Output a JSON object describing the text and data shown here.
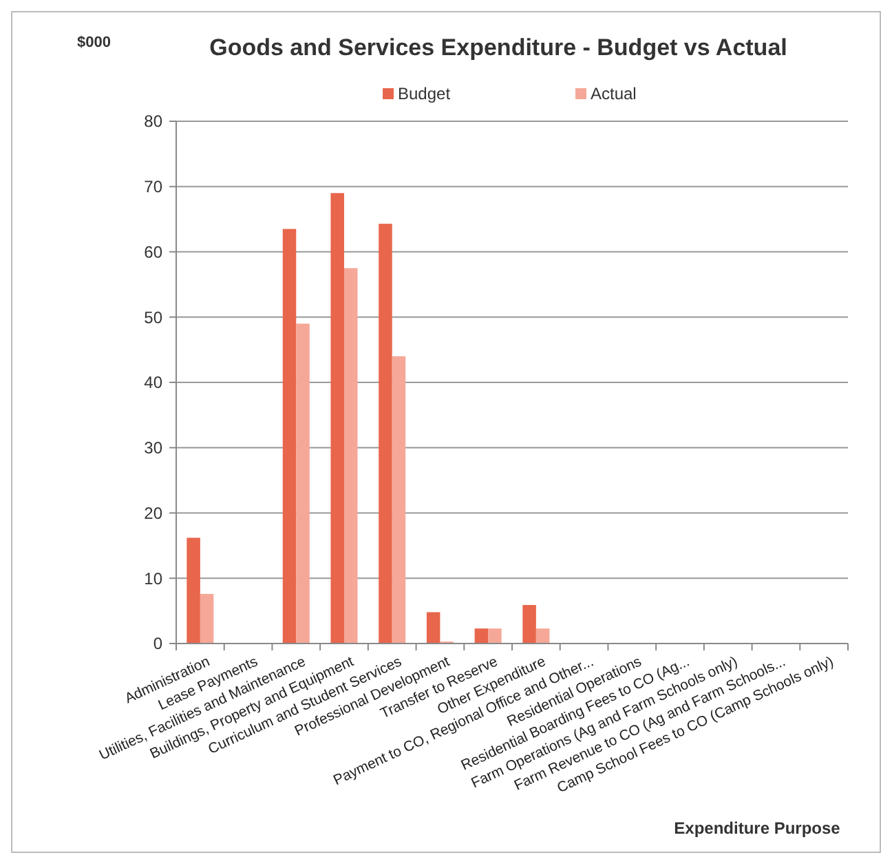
{
  "chart_data": {
    "type": "bar",
    "title": "Goods and Services Expenditure - Budget vs Actual",
    "ylabel": "$000",
    "xlabel": "Expenditure Purpose",
    "categories": [
      "Administration",
      "Lease Payments",
      "Utilities, Facilities and Maintenance",
      "Buildings, Property and Equipment",
      "Curriculum and Student Services",
      "Professional Development",
      "Transfer to Reserve",
      "Other Expenditure",
      "Payment to CO, Regional Office and Other...",
      "Residential Operations",
      "Residential Boarding Fees to CO (Ag...",
      "Farm Operations (Ag and Farm Schools only)",
      "Farm Revenue to CO (Ag and Farm Schools...",
      "Camp School Fees to CO (Camp Schools only)"
    ],
    "series": [
      {
        "name": "Budget",
        "color": "#e8664c",
        "values": [
          16.2,
          0,
          63.5,
          69,
          64.3,
          4.8,
          2.3,
          5.9,
          0,
          0,
          0,
          0,
          0,
          0
        ]
      },
      {
        "name": "Actual",
        "color": "#f5a898",
        "values": [
          7.6,
          0,
          49,
          57.5,
          44,
          0.3,
          2.3,
          2.3,
          0,
          0,
          0,
          0,
          0,
          0
        ]
      }
    ],
    "ylim": [
      0,
      80
    ],
    "yticks": [
      0,
      10,
      20,
      30,
      40,
      50,
      60,
      70,
      80
    ],
    "grid": "y",
    "legend": "top"
  }
}
